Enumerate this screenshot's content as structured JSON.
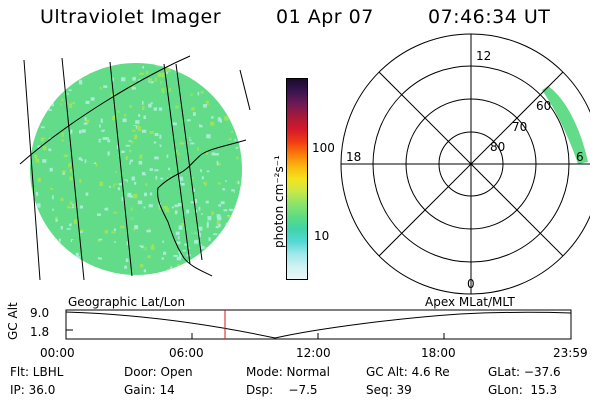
{
  "header": {
    "instrument": "Ultraviolet Imager",
    "date": "01 Apr 07",
    "time": "07:46:34 UT"
  },
  "colorbar": {
    "unit": "photon cm⁻²s⁻¹",
    "ticks": [
      "100",
      "10"
    ],
    "colors": [
      "#1a0b2e",
      "#3a1450",
      "#6e1a57",
      "#a51a3a",
      "#d4182b",
      "#f03a14",
      "#fb7a0a",
      "#fbb70e",
      "#f5e31c",
      "#c8e84a",
      "#8ce46a",
      "#5fdc83",
      "#3fd4a8",
      "#53d8d6",
      "#9fe8ea",
      "#d0f2f3",
      "#eaf7f8"
    ]
  },
  "polar": {
    "mlt_labels": [
      "12",
      "18",
      "6",
      "0"
    ],
    "lat_labels": [
      "60",
      "70",
      "80"
    ]
  },
  "timeline": {
    "left_title": "Geographic Lat/Lon",
    "right_title": "Apex MLat/MLT",
    "axis_label": "GC Alt",
    "y_ticks": [
      "9.0",
      "1.8"
    ],
    "x_ticks": [
      "00:00",
      "06:00",
      "12:00",
      "18:00",
      "23:59"
    ]
  },
  "footer": {
    "row1": [
      "Flt: LBHL",
      "Door: Open",
      "Mode: Normal",
      "GC Alt: 4.6 Re",
      "GLat: −37.6"
    ],
    "row2": [
      "IP: 36.0",
      "Gain: 14",
      "Dsp:    −7.5",
      "Seq: 39",
      "GLon:  15.3"
    ]
  },
  "colors": {
    "image_base": "#63dc8a",
    "image_light": "#a9ecd6",
    "image_green": "#9be45a",
    "marker": "#d21a1a"
  }
}
